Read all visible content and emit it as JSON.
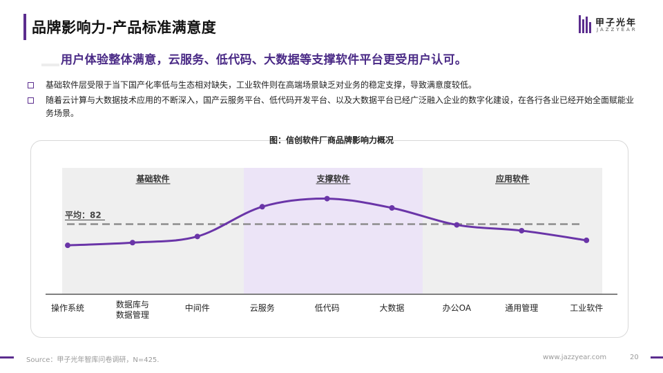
{
  "page": {
    "title": "品牌影响力-产品标准满意度",
    "headline": "用户体验整体满意，云服务、低代码、大数据等支撑软件平台更受用户认可。",
    "bullets": [
      "基础软件层受限于当下国产化率低与生态相对缺失，工业软件则在高端场景缺乏对业务的稳定支撑，导致满意度较低。",
      "随着云计算与大数据技术应用的不断深入，国产云服务平台、低代码开发平台、以及大数据平台已经广泛融入企业的数字化建设，在各行各业已经开始全面赋能业务场景。"
    ]
  },
  "logo": {
    "name": "甲子光年",
    "sub": "JAZZYEAR"
  },
  "chart_data": {
    "type": "line",
    "title": "图：信创软件厂商品牌影响力概况",
    "categories": [
      "操作系统",
      "数据库与\n数据管理",
      "中间件",
      "云服务",
      "低代码",
      "大数据",
      "办公OA",
      "通用管理",
      "工业软件"
    ],
    "values": [
      76.5,
      77.2,
      78.8,
      86.5,
      88.6,
      86.2,
      81.8,
      80.3,
      77.8
    ],
    "ylim": [
      64,
      93
    ],
    "average": {
      "label": "平均：82",
      "value": 82
    },
    "groups": [
      {
        "label": "基础软件",
        "start": 0,
        "end": 2
      },
      {
        "label": "支撑软件",
        "start": 3,
        "end": 5
      },
      {
        "label": "应用软件",
        "start": 6,
        "end": 8
      }
    ],
    "colors": {
      "line": "#6a35a8",
      "group_gray": "#efefef",
      "group_purple": "#ece4f7",
      "average": "#8c8c8c"
    },
    "grid": false
  },
  "footer": {
    "source": "Source：甲子光年智库问卷调研，N=425.",
    "site": "www.jazzyear.com",
    "page": "20"
  }
}
